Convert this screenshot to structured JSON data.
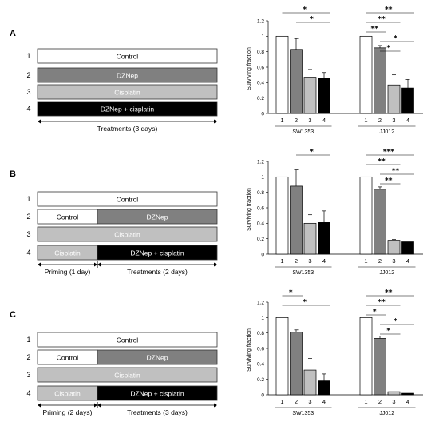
{
  "colors": {
    "control": "#ffffff",
    "dznep": "#808080",
    "cisplatin": "#c0c0c0",
    "combo": "#000000",
    "outline": "#333333"
  },
  "panels": [
    {
      "letter": "A",
      "rows": [
        {
          "num": "1",
          "segments": [
            {
              "label": "Control",
              "color": "control"
            }
          ]
        },
        {
          "num": "2",
          "segments": [
            {
              "label": "DZNep",
              "color": "dznep"
            }
          ]
        },
        {
          "num": "3",
          "segments": [
            {
              "label": "Cisplatin",
              "color": "cisplatin"
            }
          ]
        },
        {
          "num": "4",
          "segments": [
            {
              "label": "DZNep + cisplatin",
              "color": "combo"
            }
          ]
        }
      ],
      "phases": [
        {
          "label": "Treatments (3 days)"
        }
      ]
    },
    {
      "letter": "B",
      "rows": [
        {
          "num": "1",
          "segments": [
            {
              "label": "Control",
              "color": "control"
            }
          ]
        },
        {
          "num": "2",
          "segments": [
            {
              "label": "Control",
              "color": "control"
            },
            {
              "label": "DZNep",
              "color": "dznep"
            }
          ]
        },
        {
          "num": "3",
          "segments": [
            {
              "label": "Cisplatin",
              "color": "cisplatin"
            }
          ]
        },
        {
          "num": "4",
          "segments": [
            {
              "label": "Cisplatin",
              "color": "cisplatin"
            },
            {
              "label": "DZNep + cisplatin",
              "color": "combo"
            }
          ]
        }
      ],
      "phases": [
        {
          "label": "Priming (1 day)"
        },
        {
          "label": "Treatments (2 days)"
        }
      ]
    },
    {
      "letter": "C",
      "rows": [
        {
          "num": "1",
          "segments": [
            {
              "label": "Control",
              "color": "control"
            }
          ]
        },
        {
          "num": "2",
          "segments": [
            {
              "label": "Control",
              "color": "control"
            },
            {
              "label": "DZNep",
              "color": "dznep"
            }
          ]
        },
        {
          "num": "3",
          "segments": [
            {
              "label": "Cisplatin",
              "color": "cisplatin"
            }
          ]
        },
        {
          "num": "4",
          "segments": [
            {
              "label": "Cisplatin",
              "color": "cisplatin"
            },
            {
              "label": "DZNep + cisplatin",
              "color": "combo"
            }
          ]
        }
      ],
      "phases": [
        {
          "label": "Priming (2 days)"
        },
        {
          "label": "Treatments (3 days)"
        }
      ]
    }
  ],
  "chart_data": [
    {
      "type": "bar",
      "panel": "A",
      "ylabel": "Surviving fraction",
      "ylim": [
        0,
        1.2
      ],
      "yticks": [
        "0",
        "0.2",
        "0.4",
        "0.6",
        "0.8",
        "1",
        "1.2"
      ],
      "categories": [
        "1",
        "2",
        "3",
        "4"
      ],
      "groups": [
        {
          "name": "SW1353",
          "values": [
            1.0,
            0.83,
            0.47,
            0.46
          ],
          "errors": [
            0,
            0.14,
            0.1,
            0.07
          ]
        },
        {
          "name": "JJ012",
          "values": [
            1.0,
            0.85,
            0.37,
            0.33
          ],
          "errors": [
            0,
            0.03,
            0.13,
            0.11
          ]
        }
      ],
      "significance": [
        {
          "group": 0,
          "from": 1,
          "to": 4,
          "label": "*"
        },
        {
          "group": 0,
          "from": 2,
          "to": 4,
          "label": "*"
        },
        {
          "group": 1,
          "from": 1,
          "to": 4,
          "label": "**"
        },
        {
          "group": 1,
          "from": 1,
          "to": 3,
          "label": "**"
        },
        {
          "group": 1,
          "from": 1,
          "to": 2,
          "label": "**"
        },
        {
          "group": 1,
          "from": 2,
          "to": 4,
          "label": "*"
        },
        {
          "group": 1,
          "from": 2,
          "to": 3,
          "label": "*"
        }
      ]
    },
    {
      "type": "bar",
      "panel": "B",
      "ylabel": "Surviving fraction",
      "ylim": [
        0,
        1.2
      ],
      "yticks": [
        "0",
        "0.2",
        "0.4",
        "0.6",
        "0.8",
        "1",
        "1.2"
      ],
      "categories": [
        "1",
        "2",
        "3",
        "4"
      ],
      "groups": [
        {
          "name": "SW1353",
          "values": [
            1.0,
            0.88,
            0.4,
            0.41
          ],
          "errors": [
            0,
            0.21,
            0.11,
            0.15
          ]
        },
        {
          "name": "JJ012",
          "values": [
            1.0,
            0.84,
            0.18,
            0.16
          ],
          "errors": [
            0,
            0.03,
            0.01,
            0
          ]
        }
      ],
      "significance": [
        {
          "group": 0,
          "from": 2,
          "to": 4,
          "label": "*"
        },
        {
          "group": 1,
          "from": 1,
          "to": 4,
          "label": "***"
        },
        {
          "group": 1,
          "from": 1,
          "to": 3,
          "label": "**"
        },
        {
          "group": 1,
          "from": 2,
          "to": 4,
          "label": "**"
        },
        {
          "group": 1,
          "from": 2,
          "to": 3,
          "label": "**"
        }
      ]
    },
    {
      "type": "bar",
      "panel": "C",
      "ylabel": "Surviving fraction",
      "ylim": [
        0,
        1.2
      ],
      "yticks": [
        "0",
        "0.2",
        "0.4",
        "0.6",
        "0.8",
        "1",
        "1.2"
      ],
      "categories": [
        "1",
        "2",
        "3",
        "4"
      ],
      "groups": [
        {
          "name": "SW1353",
          "values": [
            1.0,
            0.81,
            0.32,
            0.18
          ],
          "errors": [
            0,
            0.03,
            0.15,
            0.09
          ]
        },
        {
          "name": "JJ012",
          "values": [
            1.0,
            0.73,
            0.04,
            0.02
          ],
          "errors": [
            0,
            0.03,
            0,
            0
          ]
        }
      ],
      "significance": [
        {
          "group": 0,
          "from": 1,
          "to": 2,
          "label": "*"
        },
        {
          "group": 0,
          "from": 1,
          "to": 4,
          "label": "*"
        },
        {
          "group": 1,
          "from": 1,
          "to": 4,
          "label": "**"
        },
        {
          "group": 1,
          "from": 1,
          "to": 3,
          "label": "**"
        },
        {
          "group": 1,
          "from": 1,
          "to": 2,
          "label": "*"
        },
        {
          "group": 1,
          "from": 2,
          "to": 4,
          "label": "*"
        },
        {
          "group": 1,
          "from": 2,
          "to": 3,
          "label": "*"
        }
      ]
    }
  ]
}
